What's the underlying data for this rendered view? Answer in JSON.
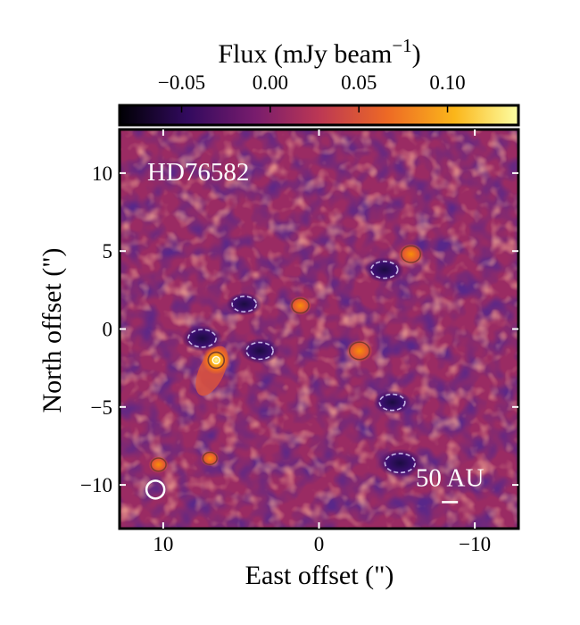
{
  "chart_data": {
    "type": "heatmap",
    "title": "",
    "annotation": "HD76582",
    "scale_bar_label": "50 AU",
    "xlabel": "East offset (\")",
    "ylabel": "North offset (\")",
    "xlim": [
      12.8,
      -12.8
    ],
    "ylim": [
      -12.8,
      12.8
    ],
    "x_ticks": [
      10,
      0,
      -10
    ],
    "x_tick_labels": [
      "10",
      "0",
      "−10"
    ],
    "y_ticks": [
      10,
      5,
      0,
      -5,
      -10
    ],
    "y_tick_labels": [
      "10",
      "5",
      "0",
      "−5",
      "−10"
    ],
    "colorbar": {
      "label": "Flux (mJy beam",
      "label_exponent": "−1",
      "label_close": ")",
      "range": [
        -0.085,
        0.14
      ],
      "ticks": [
        -0.05,
        0.0,
        0.05,
        0.1
      ],
      "tick_labels": [
        "−0.05",
        "0.00",
        "0.05",
        "0.10"
      ],
      "colormap": "inferno",
      "stops": [
        "#000004",
        "#320a5e",
        "#781c6d",
        "#bc3754",
        "#ed6925",
        "#fbb61a",
        "#fcffa4"
      ]
    },
    "sources": [
      {
        "x": 6.6,
        "y": -2.0,
        "peak_mJy": 0.12,
        "label": "bright compact source"
      },
      {
        "x": -2.6,
        "y": -1.4,
        "peak_mJy": 0.06
      },
      {
        "x": -5.9,
        "y": 4.8,
        "peak_mJy": 0.055
      },
      {
        "x": 1.2,
        "y": 1.5,
        "peak_mJy": 0.045
      },
      {
        "x": 10.3,
        "y": -8.7,
        "peak_mJy": 0.035
      },
      {
        "x": 7.0,
        "y": -8.3,
        "peak_mJy": 0.03
      }
    ],
    "negatives": [
      {
        "x": 7.5,
        "y": -0.6,
        "peak_mJy": -0.06
      },
      {
        "x": 3.8,
        "y": -1.4,
        "peak_mJy": -0.055
      },
      {
        "x": -4.2,
        "y": 3.8,
        "peak_mJy": -0.055
      },
      {
        "x": -4.7,
        "y": -4.7,
        "peak_mJy": -0.05
      },
      {
        "x": -5.2,
        "y": -8.6,
        "peak_mJy": -0.07
      },
      {
        "x": 4.8,
        "y": 1.6,
        "peak_mJy": -0.045
      }
    ],
    "beam": {
      "x": 10.5,
      "y": -10.3
    },
    "scale_bar": {
      "x": -8.4,
      "y": -11.1
    }
  }
}
